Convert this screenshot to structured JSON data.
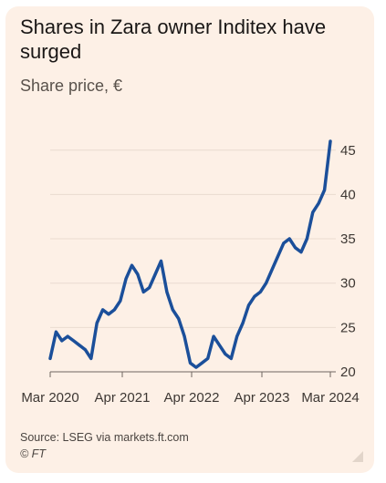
{
  "title": "Shares in Zara owner Inditex have surged",
  "subtitle": "Share price, €",
  "source": "Source: LSEG via markets.ft.com",
  "credit": "© FT",
  "colors": {
    "background": "#fdf0e6",
    "line": "#1b4f9a",
    "grid": "#eadbd0",
    "text": "#3d3733"
  },
  "chart_data": {
    "type": "line",
    "title": "Shares in Zara owner Inditex have surged",
    "ylabel": "Share price, €",
    "xlabel": "",
    "ylim": [
      20,
      47
    ],
    "y_ticks": [
      20,
      25,
      30,
      35,
      40,
      45
    ],
    "x_ticks": [
      "Mar 2020",
      "Apr 2021",
      "Apr 2022",
      "Apr 2023",
      "Mar 2024"
    ],
    "grid": true,
    "series": [
      {
        "x": [
          "2020-03",
          "2020-04",
          "2020-05",
          "2020-06",
          "2020-07",
          "2020-08",
          "2020-09",
          "2020-10",
          "2020-11",
          "2020-12",
          "2021-01",
          "2021-02",
          "2021-03",
          "2021-04",
          "2021-05",
          "2021-06",
          "2021-07",
          "2021-08",
          "2021-09",
          "2021-10",
          "2021-11",
          "2021-12",
          "2022-01",
          "2022-02",
          "2022-03",
          "2022-04",
          "2022-05",
          "2022-06",
          "2022-07",
          "2022-08",
          "2022-09",
          "2022-10",
          "2022-11",
          "2022-12",
          "2023-01",
          "2023-02",
          "2023-03",
          "2023-04",
          "2023-05",
          "2023-06",
          "2023-07",
          "2023-08",
          "2023-09",
          "2023-10",
          "2023-11",
          "2023-12",
          "2024-01",
          "2024-02",
          "2024-03"
        ],
        "y": [
          21.5,
          24.5,
          23.5,
          24.0,
          23.5,
          23.0,
          22.5,
          21.5,
          25.5,
          27.0,
          26.5,
          27.0,
          28.0,
          30.5,
          32.0,
          31.0,
          29.0,
          29.5,
          31.0,
          32.5,
          29.0,
          27.0,
          26.0,
          24.0,
          21.0,
          20.5,
          21.0,
          21.5,
          24.0,
          23.0,
          22.0,
          21.5,
          24.0,
          25.5,
          27.5,
          28.5,
          29.0,
          30.0,
          31.5,
          33.0,
          34.5,
          35.0,
          34.0,
          33.5,
          35.0,
          38.0,
          39.0,
          40.5,
          46.0
        ]
      }
    ]
  }
}
